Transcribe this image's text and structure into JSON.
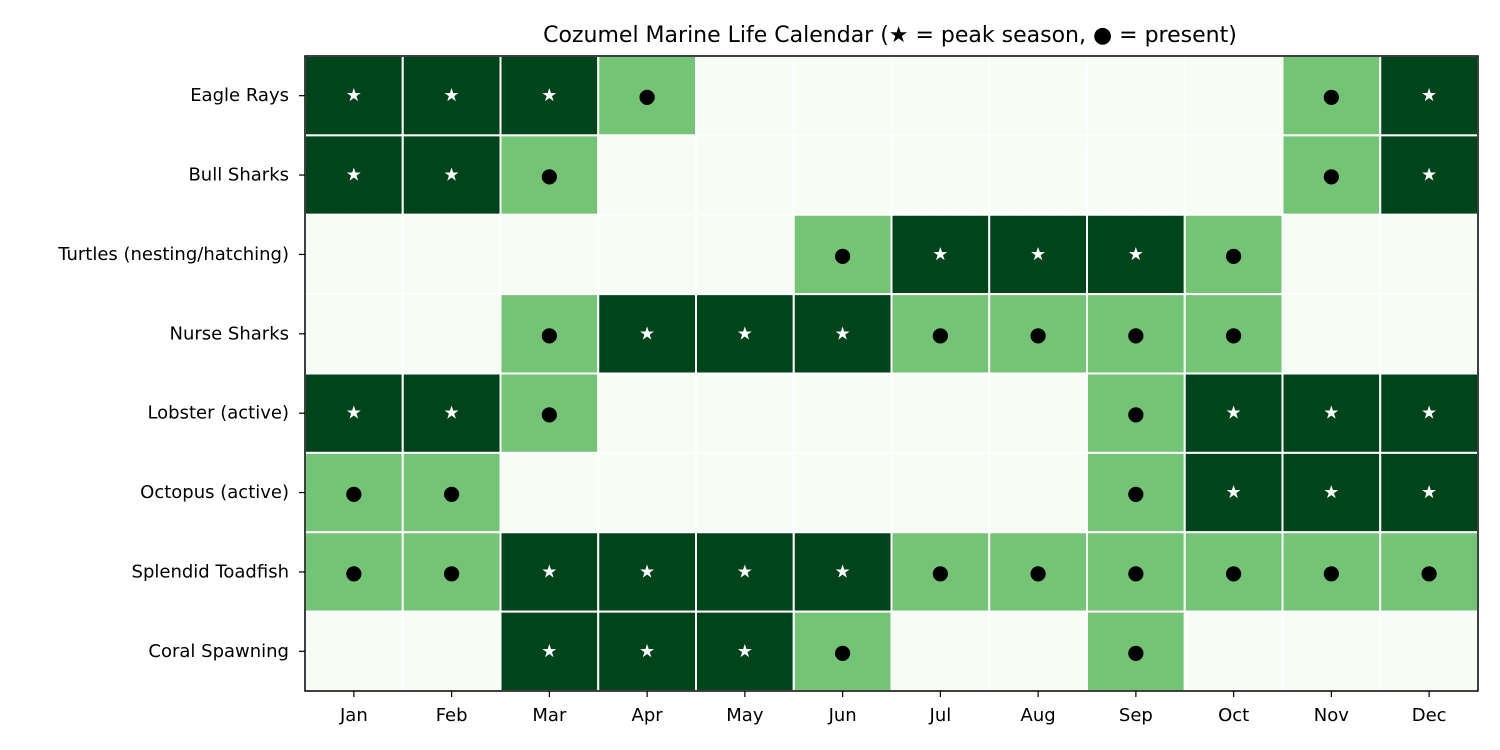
{
  "chart_data": {
    "type": "heatmap",
    "title": "Cozumel Marine Life Calendar (★ = peak season, ● = present)",
    "xlabel": "",
    "ylabel": "",
    "x": [
      "Jan",
      "Feb",
      "Mar",
      "Apr",
      "May",
      "Jun",
      "Jul",
      "Aug",
      "Sep",
      "Oct",
      "Nov",
      "Dec"
    ],
    "y": [
      "Eagle Rays",
      "Bull Sharks",
      "Turtles (nesting/hatching)",
      "Nurse Sharks",
      "Lobster (active)",
      "Octopus (active)",
      "Splendid Toadfish",
      "Coral Spawning"
    ],
    "values": [
      [
        2,
        2,
        2,
        1,
        0,
        0,
        0,
        0,
        0,
        0,
        1,
        2
      ],
      [
        2,
        2,
        1,
        0,
        0,
        0,
        0,
        0,
        0,
        0,
        1,
        2
      ],
      [
        0,
        0,
        0,
        0,
        0,
        1,
        2,
        2,
        2,
        1,
        0,
        0
      ],
      [
        0,
        0,
        1,
        2,
        2,
        2,
        1,
        1,
        1,
        1,
        0,
        0
      ],
      [
        2,
        2,
        1,
        0,
        0,
        0,
        0,
        0,
        1,
        2,
        2,
        2
      ],
      [
        1,
        1,
        0,
        0,
        0,
        0,
        0,
        0,
        1,
        2,
        2,
        2
      ],
      [
        1,
        1,
        2,
        2,
        2,
        2,
        1,
        1,
        1,
        1,
        1,
        1
      ],
      [
        0,
        0,
        2,
        2,
        2,
        1,
        0,
        0,
        1,
        0,
        0,
        0
      ]
    ],
    "levels": {
      "0": {
        "color": "#f7fcf5",
        "marker": ""
      },
      "1": {
        "color": "#74c476",
        "marker": "●",
        "marker_color": "#000000"
      },
      "2": {
        "color": "#00441b",
        "marker": "★",
        "marker_color": "#ffffff"
      }
    },
    "grid": true,
    "legend": "none"
  }
}
